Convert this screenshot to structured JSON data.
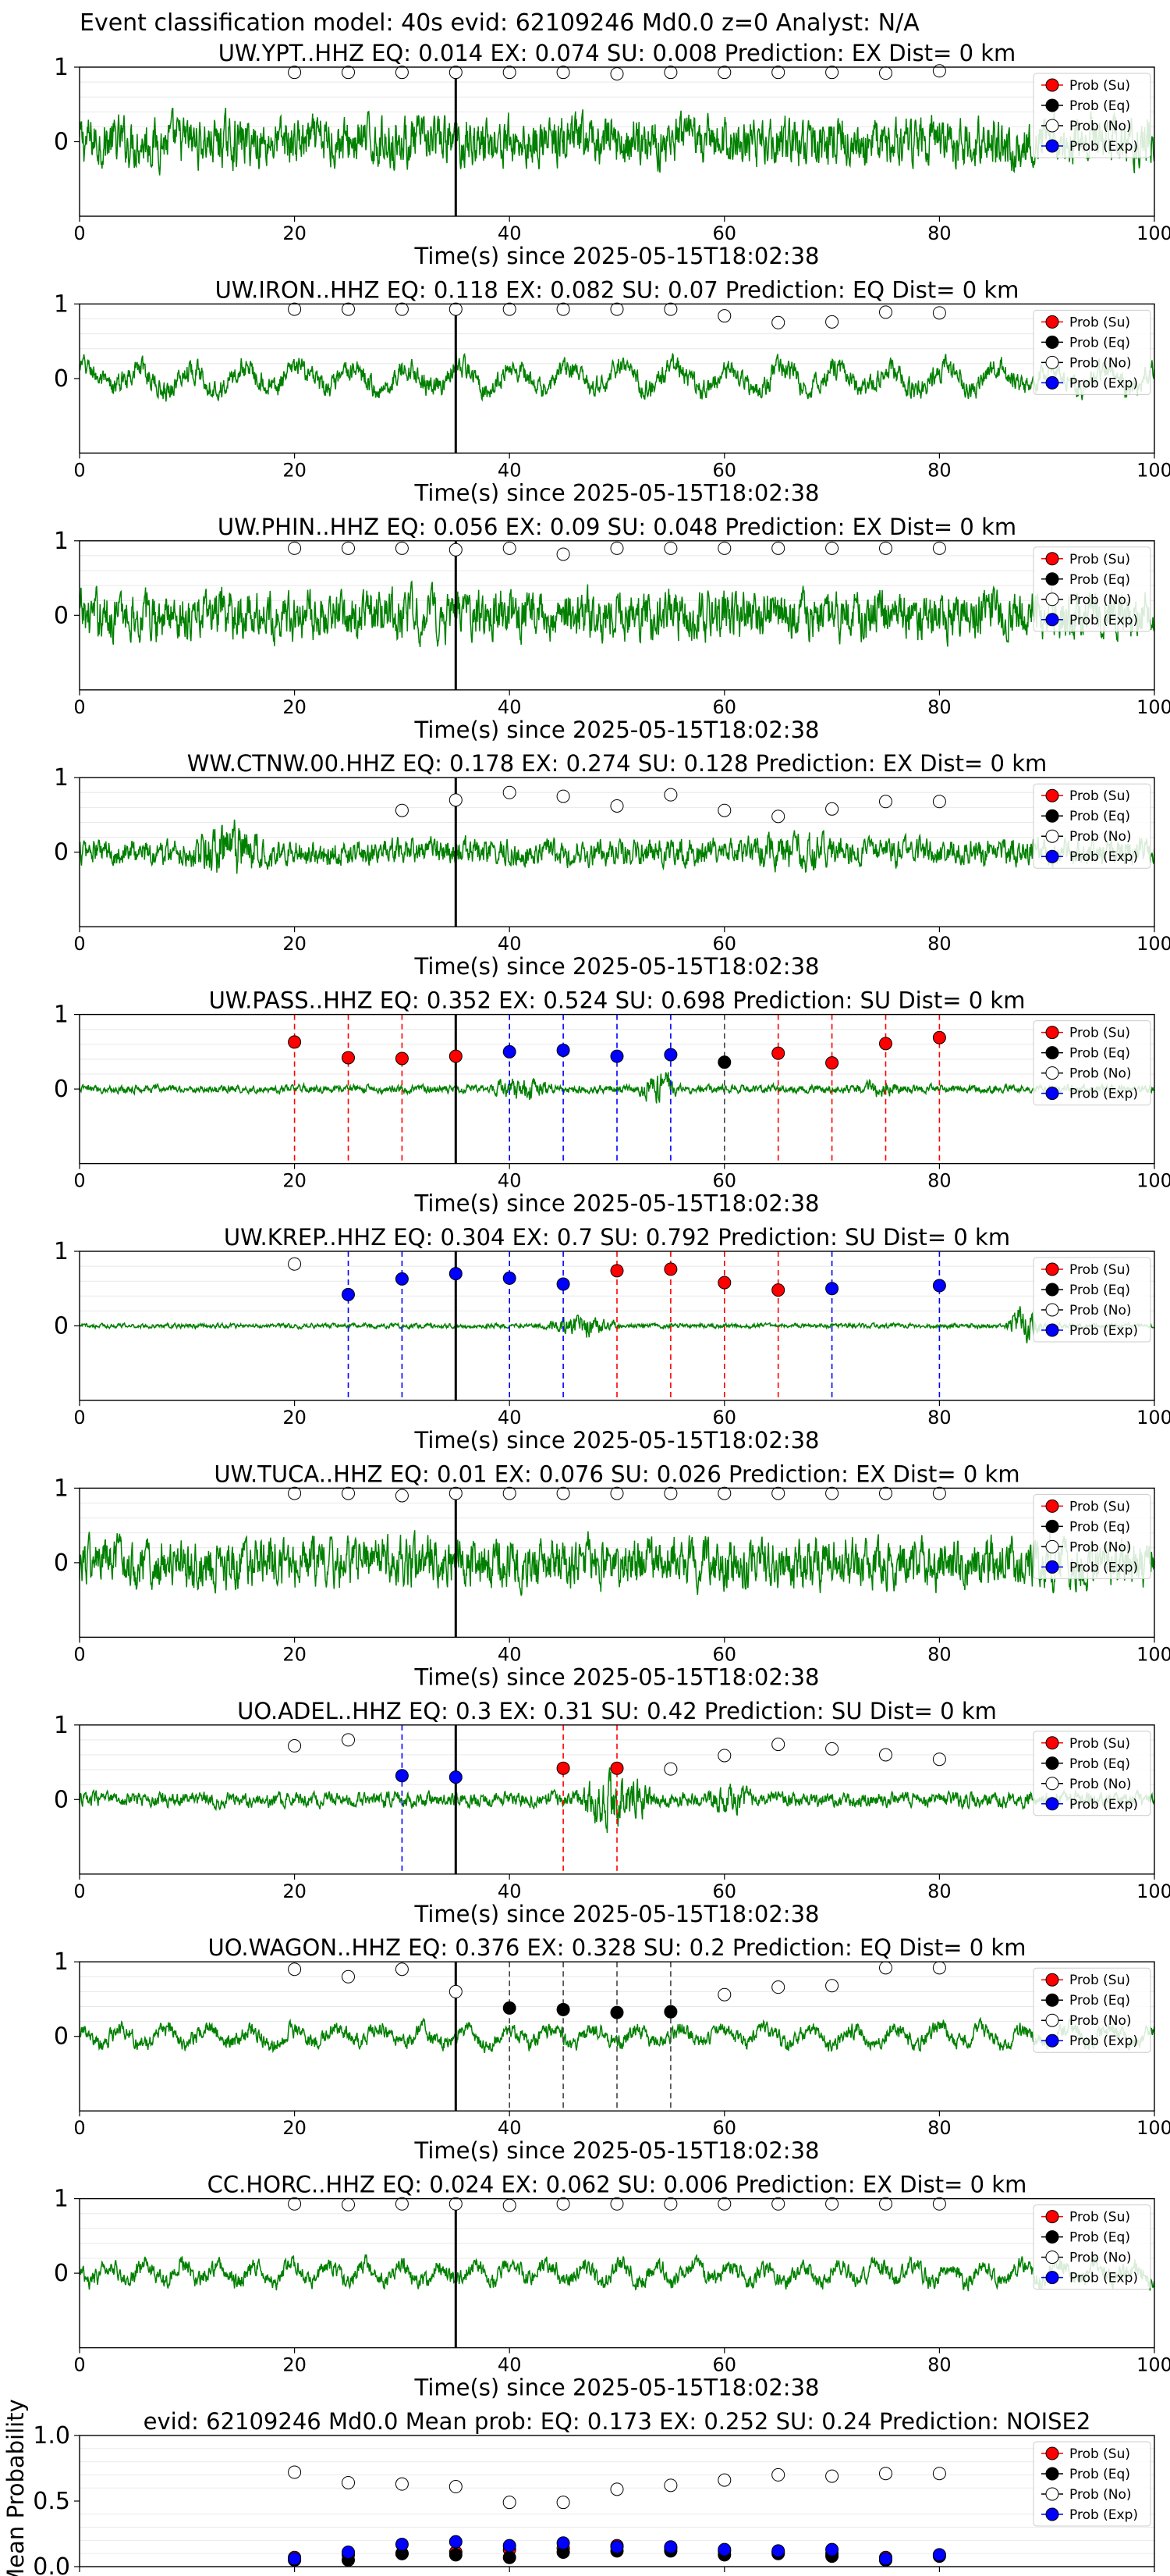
{
  "chart_data": {
    "type": "line",
    "title": "Event classification model: 40s evid: 62109246 Md0.0 z=0 Analyst: N/A",
    "colors": {
      "waveform": "#008000",
      "su": "#ff0000",
      "eq": "#000000",
      "no": "#ffffff",
      "exp": "#0000ff"
    },
    "legend": {
      "placement": "top-right",
      "entries": [
        "Prob (Su)",
        "Prob (Eq)",
        "Prob (No)",
        "Prob (Exp)"
      ]
    },
    "xlim": [
      0,
      100
    ],
    "xticks": [
      0,
      20,
      40,
      60,
      80,
      100
    ],
    "window_times": [
      20,
      25,
      30,
      35,
      40,
      45,
      50,
      55,
      60,
      65,
      70,
      75,
      80
    ],
    "origin_line_x": 35,
    "grid": true,
    "panels": [
      {
        "title": "UW.YPT..HHZ   EQ: 0.014  EX: 0.074  SU: 0.008   Prediction: EX    Dist= 0 km",
        "xlabel": "Time(s) since 2025-05-15T18:02:38",
        "yticks": [
          "1",
          "0"
        ],
        "noise": 0.55,
        "period": 1.6,
        "envelope": [],
        "points": [
          {
            "x": 20,
            "p": 0.93,
            "cls": "no"
          },
          {
            "x": 25,
            "p": 0.93,
            "cls": "no"
          },
          {
            "x": 30,
            "p": 0.93,
            "cls": "no"
          },
          {
            "x": 35,
            "p": 0.93,
            "cls": "no"
          },
          {
            "x": 40,
            "p": 0.93,
            "cls": "no"
          },
          {
            "x": 45,
            "p": 0.93,
            "cls": "no"
          },
          {
            "x": 50,
            "p": 0.91,
            "cls": "no"
          },
          {
            "x": 55,
            "p": 0.93,
            "cls": "no"
          },
          {
            "x": 60,
            "p": 0.93,
            "cls": "no"
          },
          {
            "x": 65,
            "p": 0.93,
            "cls": "no"
          },
          {
            "x": 70,
            "p": 0.93,
            "cls": "no"
          },
          {
            "x": 75,
            "p": 0.92,
            "cls": "no"
          },
          {
            "x": 80,
            "p": 0.95,
            "cls": "no"
          }
        ]
      },
      {
        "title": "UW.IRON..HHZ   EQ: 0.118  EX: 0.082  SU: 0.07   Prediction: EQ    Dist= 0 km",
        "xlabel": "Time(s) since 2025-05-15T18:02:38",
        "yticks": [
          "1",
          "0"
        ],
        "noise": 0.25,
        "period": 5.0,
        "envelope": [],
        "points": [
          {
            "x": 20,
            "p": 0.93,
            "cls": "no"
          },
          {
            "x": 25,
            "p": 0.93,
            "cls": "no"
          },
          {
            "x": 30,
            "p": 0.93,
            "cls": "no"
          },
          {
            "x": 35,
            "p": 0.93,
            "cls": "no"
          },
          {
            "x": 40,
            "p": 0.93,
            "cls": "no"
          },
          {
            "x": 45,
            "p": 0.93,
            "cls": "no"
          },
          {
            "x": 50,
            "p": 0.93,
            "cls": "no"
          },
          {
            "x": 55,
            "p": 0.93,
            "cls": "no"
          },
          {
            "x": 60,
            "p": 0.84,
            "cls": "no"
          },
          {
            "x": 65,
            "p": 0.75,
            "cls": "no"
          },
          {
            "x": 70,
            "p": 0.76,
            "cls": "no"
          },
          {
            "x": 75,
            "p": 0.89,
            "cls": "no"
          },
          {
            "x": 80,
            "p": 0.88,
            "cls": "no"
          }
        ]
      },
      {
        "title": "UW.PHIN..HHZ   EQ: 0.056  EX: 0.09  SU: 0.048   Prediction: EX    Dist= 0 km",
        "xlabel": "Time(s) since 2025-05-15T18:02:38",
        "yticks": [
          "1",
          "0"
        ],
        "noise": 0.55,
        "period": 1.2,
        "envelope": [],
        "points": [
          {
            "x": 20,
            "p": 0.9,
            "cls": "no"
          },
          {
            "x": 25,
            "p": 0.9,
            "cls": "no"
          },
          {
            "x": 30,
            "p": 0.9,
            "cls": "no"
          },
          {
            "x": 35,
            "p": 0.88,
            "cls": "no"
          },
          {
            "x": 40,
            "p": 0.9,
            "cls": "no"
          },
          {
            "x": 45,
            "p": 0.82,
            "cls": "no"
          },
          {
            "x": 50,
            "p": 0.9,
            "cls": "no"
          },
          {
            "x": 55,
            "p": 0.9,
            "cls": "no"
          },
          {
            "x": 60,
            "p": 0.9,
            "cls": "no"
          },
          {
            "x": 65,
            "p": 0.9,
            "cls": "no"
          },
          {
            "x": 70,
            "p": 0.9,
            "cls": "no"
          },
          {
            "x": 75,
            "p": 0.9,
            "cls": "no"
          },
          {
            "x": 80,
            "p": 0.9,
            "cls": "no"
          }
        ]
      },
      {
        "title": "WW.CTNW.00.HHZ   EQ: 0.178  EX: 0.274  SU: 0.128   Prediction: EX    Dist= 0 km",
        "xlabel": "Time(s) since 2025-05-15T18:02:38",
        "yticks": [
          "1",
          "0"
        ],
        "noise": 0.3,
        "period": 1.0,
        "envelope": [
          [
            10,
            22,
            2.2
          ],
          [
            62,
            78,
            1.4
          ]
        ],
        "points": [
          {
            "x": 30,
            "p": 0.56,
            "cls": "no"
          },
          {
            "x": 35,
            "p": 0.7,
            "cls": "no"
          },
          {
            "x": 40,
            "p": 0.8,
            "cls": "no"
          },
          {
            "x": 45,
            "p": 0.75,
            "cls": "no"
          },
          {
            "x": 50,
            "p": 0.62,
            "cls": "no"
          },
          {
            "x": 55,
            "p": 0.77,
            "cls": "no"
          },
          {
            "x": 60,
            "p": 0.56,
            "cls": "no"
          },
          {
            "x": 65,
            "p": 0.48,
            "cls": "no"
          },
          {
            "x": 70,
            "p": 0.58,
            "cls": "no"
          },
          {
            "x": 75,
            "p": 0.68,
            "cls": "no"
          },
          {
            "x": 80,
            "p": 0.68,
            "cls": "no"
          }
        ]
      },
      {
        "title": "UW.PASS..HHZ   EQ: 0.352  EX: 0.524  SU: 0.698   Prediction: SU    Dist= 0 km",
        "xlabel": "Time(s) since 2025-05-15T18:02:38",
        "yticks": [
          "1",
          "0"
        ],
        "noise": 0.09,
        "period": 1.0,
        "envelope": [
          [
            38,
            48,
            3.0
          ],
          [
            52,
            58,
            4.5
          ],
          [
            72,
            80,
            2.0
          ]
        ],
        "points": [
          {
            "x": 20,
            "p": 0.63,
            "cls": "su",
            "line": true
          },
          {
            "x": 25,
            "p": 0.42,
            "cls": "su",
            "line": true
          },
          {
            "x": 30,
            "p": 0.41,
            "cls": "su",
            "line": true
          },
          {
            "x": 35,
            "p": 0.44,
            "cls": "su",
            "line": true
          },
          {
            "x": 40,
            "p": 0.5,
            "cls": "exp",
            "line": true
          },
          {
            "x": 45,
            "p": 0.52,
            "cls": "exp",
            "line": true
          },
          {
            "x": 50,
            "p": 0.44,
            "cls": "exp",
            "line": true
          },
          {
            "x": 55,
            "p": 0.46,
            "cls": "exp",
            "line": true
          },
          {
            "x": 60,
            "p": 0.36,
            "cls": "eq",
            "line": true
          },
          {
            "x": 65,
            "p": 0.48,
            "cls": "su",
            "line": true
          },
          {
            "x": 70,
            "p": 0.35,
            "cls": "su",
            "line": true
          },
          {
            "x": 75,
            "p": 0.61,
            "cls": "su",
            "line": true
          },
          {
            "x": 80,
            "p": 0.69,
            "cls": "su",
            "line": true
          }
        ]
      },
      {
        "title": "UW.KREP..HHZ   EQ: 0.304  EX: 0.7  SU: 0.792   Prediction: SU    Dist= 0 km",
        "xlabel": "Time(s) since 2025-05-15T18:02:38",
        "yticks": [
          "1",
          "0"
        ],
        "noise": 0.05,
        "period": 1.0,
        "envelope": [
          [
            43,
            55,
            5.0
          ],
          [
            86,
            92,
            8.0
          ]
        ],
        "points": [
          {
            "x": 20,
            "p": 0.83,
            "cls": "no"
          },
          {
            "x": 25,
            "p": 0.42,
            "cls": "exp",
            "line": true
          },
          {
            "x": 30,
            "p": 0.63,
            "cls": "exp",
            "line": true
          },
          {
            "x": 35,
            "p": 0.7,
            "cls": "exp",
            "line": true
          },
          {
            "x": 40,
            "p": 0.64,
            "cls": "exp",
            "line": true
          },
          {
            "x": 45,
            "p": 0.56,
            "cls": "exp",
            "line": true
          },
          {
            "x": 50,
            "p": 0.74,
            "cls": "su",
            "line": true
          },
          {
            "x": 55,
            "p": 0.76,
            "cls": "su",
            "line": true
          },
          {
            "x": 60,
            "p": 0.58,
            "cls": "su",
            "line": true
          },
          {
            "x": 65,
            "p": 0.48,
            "cls": "su",
            "line": true
          },
          {
            "x": 70,
            "p": 0.5,
            "cls": "exp",
            "line": true
          },
          {
            "x": 80,
            "p": 0.54,
            "cls": "exp",
            "line": true
          }
        ]
      },
      {
        "title": "UW.TUCA..HHZ   EQ: 0.01  EX: 0.076  SU: 0.026   Prediction: EX    Dist= 0 km",
        "xlabel": "Time(s) since 2025-05-15T18:02:38",
        "yticks": [
          "1",
          "0"
        ],
        "noise": 0.55,
        "period": 1.0,
        "envelope": [],
        "points": [
          {
            "x": 20,
            "p": 0.93,
            "cls": "no"
          },
          {
            "x": 25,
            "p": 0.93,
            "cls": "no"
          },
          {
            "x": 30,
            "p": 0.9,
            "cls": "no"
          },
          {
            "x": 35,
            "p": 0.93,
            "cls": "no"
          },
          {
            "x": 40,
            "p": 0.93,
            "cls": "no"
          },
          {
            "x": 45,
            "p": 0.93,
            "cls": "no"
          },
          {
            "x": 50,
            "p": 0.93,
            "cls": "no"
          },
          {
            "x": 55,
            "p": 0.93,
            "cls": "no"
          },
          {
            "x": 60,
            "p": 0.93,
            "cls": "no"
          },
          {
            "x": 65,
            "p": 0.93,
            "cls": "no"
          },
          {
            "x": 70,
            "p": 0.93,
            "cls": "no"
          },
          {
            "x": 75,
            "p": 0.93,
            "cls": "no"
          },
          {
            "x": 80,
            "p": 0.93,
            "cls": "no"
          }
        ]
      },
      {
        "title": "UO.ADEL..HHZ   EQ: 0.3  EX: 0.31  SU: 0.42   Prediction: SU    Dist= 0 km",
        "xlabel": "Time(s) since 2025-05-15T18:02:38",
        "yticks": [
          "1",
          "0"
        ],
        "noise": 0.16,
        "period": 1.0,
        "envelope": [
          [
            46,
            58,
            4.0
          ],
          [
            58,
            66,
            2.0
          ]
        ],
        "points": [
          {
            "x": 20,
            "p": 0.72,
            "cls": "no"
          },
          {
            "x": 25,
            "p": 0.8,
            "cls": "no"
          },
          {
            "x": 30,
            "p": 0.32,
            "cls": "exp",
            "line": true
          },
          {
            "x": 35,
            "p": 0.3,
            "cls": "exp",
            "line": true
          },
          {
            "x": 45,
            "p": 0.42,
            "cls": "su",
            "line": true
          },
          {
            "x": 50,
            "p": 0.42,
            "cls": "su",
            "line": true
          },
          {
            "x": 55,
            "p": 0.41,
            "cls": "no"
          },
          {
            "x": 60,
            "p": 0.59,
            "cls": "no"
          },
          {
            "x": 65,
            "p": 0.74,
            "cls": "no"
          },
          {
            "x": 70,
            "p": 0.68,
            "cls": "no"
          },
          {
            "x": 75,
            "p": 0.6,
            "cls": "no"
          },
          {
            "x": 80,
            "p": 0.54,
            "cls": "no"
          }
        ]
      },
      {
        "title": "UO.WAGON..HHZ   EQ: 0.376  EX: 0.328  SU: 0.2   Prediction: EQ    Dist= 0 km",
        "xlabel": "Time(s) since 2025-05-15T18:02:38",
        "yticks": [
          "1",
          "0"
        ],
        "noise": 0.18,
        "period": 4.0,
        "envelope": [],
        "points": [
          {
            "x": 20,
            "p": 0.9,
            "cls": "no"
          },
          {
            "x": 25,
            "p": 0.8,
            "cls": "no"
          },
          {
            "x": 30,
            "p": 0.9,
            "cls": "no"
          },
          {
            "x": 35,
            "p": 0.6,
            "cls": "no"
          },
          {
            "x": 40,
            "p": 0.38,
            "cls": "eq",
            "line": true
          },
          {
            "x": 45,
            "p": 0.36,
            "cls": "eq",
            "line": true
          },
          {
            "x": 50,
            "p": 0.32,
            "cls": "eq",
            "line": true
          },
          {
            "x": 55,
            "p": 0.33,
            "cls": "eq",
            "line": true
          },
          {
            "x": 60,
            "p": 0.56,
            "cls": "no"
          },
          {
            "x": 65,
            "p": 0.66,
            "cls": "no"
          },
          {
            "x": 70,
            "p": 0.68,
            "cls": "no"
          },
          {
            "x": 75,
            "p": 0.92,
            "cls": "no"
          },
          {
            "x": 80,
            "p": 0.92,
            "cls": "no"
          }
        ]
      },
      {
        "title": "CC.HORC..HHZ   EQ: 0.024  EX: 0.062  SU: 0.006   Prediction: EX    Dist= 0 km",
        "xlabel": "Time(s) since 2025-05-15T18:02:38",
        "yticks": [
          "1",
          "0"
        ],
        "noise": 0.2,
        "period": 3.4,
        "envelope": [],
        "points": [
          {
            "x": 20,
            "p": 0.93,
            "cls": "no"
          },
          {
            "x": 25,
            "p": 0.92,
            "cls": "no"
          },
          {
            "x": 30,
            "p": 0.93,
            "cls": "no"
          },
          {
            "x": 35,
            "p": 0.93,
            "cls": "no"
          },
          {
            "x": 40,
            "p": 0.91,
            "cls": "no"
          },
          {
            "x": 45,
            "p": 0.93,
            "cls": "no"
          },
          {
            "x": 50,
            "p": 0.93,
            "cls": "no"
          },
          {
            "x": 55,
            "p": 0.93,
            "cls": "no"
          },
          {
            "x": 60,
            "p": 0.93,
            "cls": "no"
          },
          {
            "x": 65,
            "p": 0.93,
            "cls": "no"
          },
          {
            "x": 70,
            "p": 0.93,
            "cls": "no"
          },
          {
            "x": 75,
            "p": 0.93,
            "cls": "no"
          },
          {
            "x": 80,
            "p": 0.93,
            "cls": "no"
          }
        ]
      }
    ],
    "summary": {
      "title": "evid: 62109246  Md0.0   Mean prob:   EQ: 0.173  EX: 0.252  SU: 0.24   Prediction: NOISE2",
      "ylabel": "Mean Probability",
      "ylim": [
        0,
        1
      ],
      "yticks": [
        "0.0",
        "0.5",
        "1.0"
      ],
      "x": [
        20,
        25,
        30,
        35,
        40,
        45,
        50,
        55,
        60,
        65,
        70,
        75,
        80
      ],
      "series": [
        {
          "name": "Prob (Su)",
          "cls": "su",
          "values": [
            0.07,
            0.09,
            0.1,
            0.11,
            0.13,
            0.14,
            0.16,
            0.14,
            0.12,
            0.11,
            0.1,
            0.07,
            0.09
          ]
        },
        {
          "name": "Prob (Eq)",
          "cls": "eq",
          "values": [
            0.05,
            0.05,
            0.1,
            0.09,
            0.07,
            0.11,
            0.12,
            0.12,
            0.09,
            0.1,
            0.08,
            0.05,
            0.08
          ]
        },
        {
          "name": "Prob (No)",
          "cls": "no",
          "values": [
            0.72,
            0.64,
            0.63,
            0.61,
            0.49,
            0.49,
            0.59,
            0.62,
            0.66,
            0.7,
            0.69,
            0.71,
            0.71
          ]
        },
        {
          "name": "Prob (Exp)",
          "cls": "exp",
          "values": [
            0.06,
            0.11,
            0.17,
            0.19,
            0.16,
            0.18,
            0.15,
            0.15,
            0.13,
            0.12,
            0.13,
            0.06,
            0.09
          ]
        }
      ]
    }
  }
}
